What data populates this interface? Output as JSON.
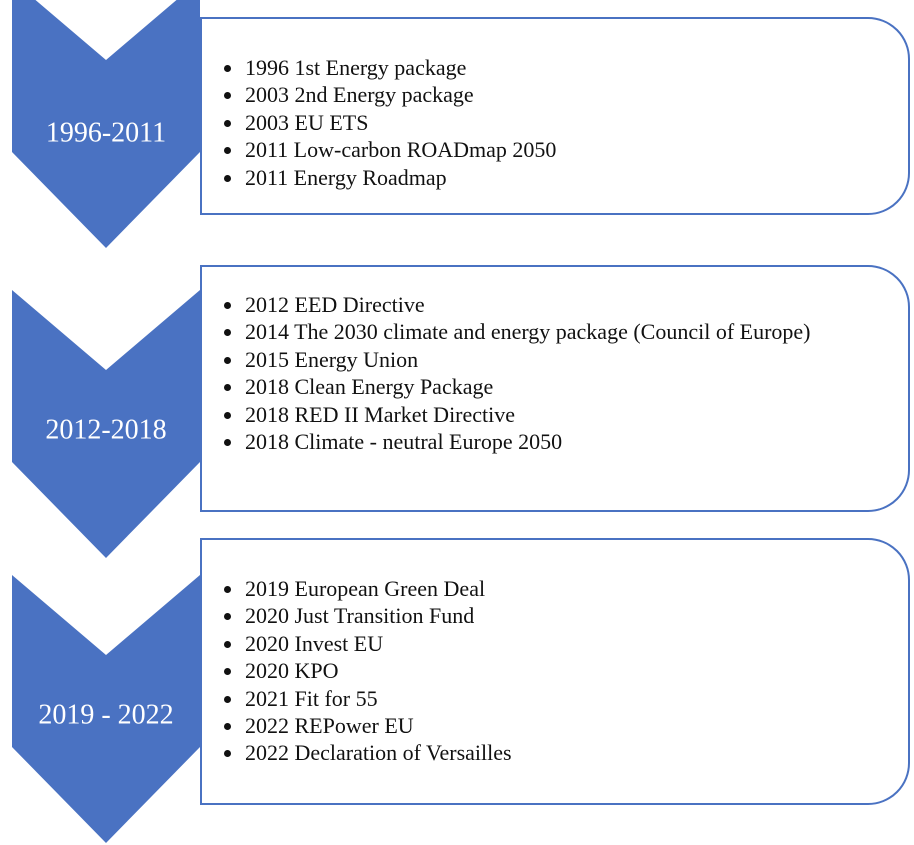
{
  "stages": [
    {
      "label": "1996-2011",
      "items": [
        "1996 1st Energy package",
        "2003 2nd Energy package",
        "2003 EU ETS",
        "2011 Low-carbon ROADmap 2050",
        "2011 Energy Roadmap"
      ]
    },
    {
      "label": "2012-2018",
      "items": [
        "2012 EED Directive",
        "2014 The 2030 climate and energy package (Council of Europe)",
        "2015 Energy Union",
        "2018 Clean Energy Package",
        "2018 RED II Market Directive",
        "2018 Climate - neutral Europe 2050"
      ]
    },
    {
      "label": "2019 - 2022",
      "items": [
        "2019 European Green Deal",
        "2020 Just Transition Fund",
        "2020 Invest EU",
        "2020 KPO",
        "2021 Fit for 55",
        "2022 REPower EU",
        "2022 Declaration of Versailles"
      ]
    }
  ]
}
